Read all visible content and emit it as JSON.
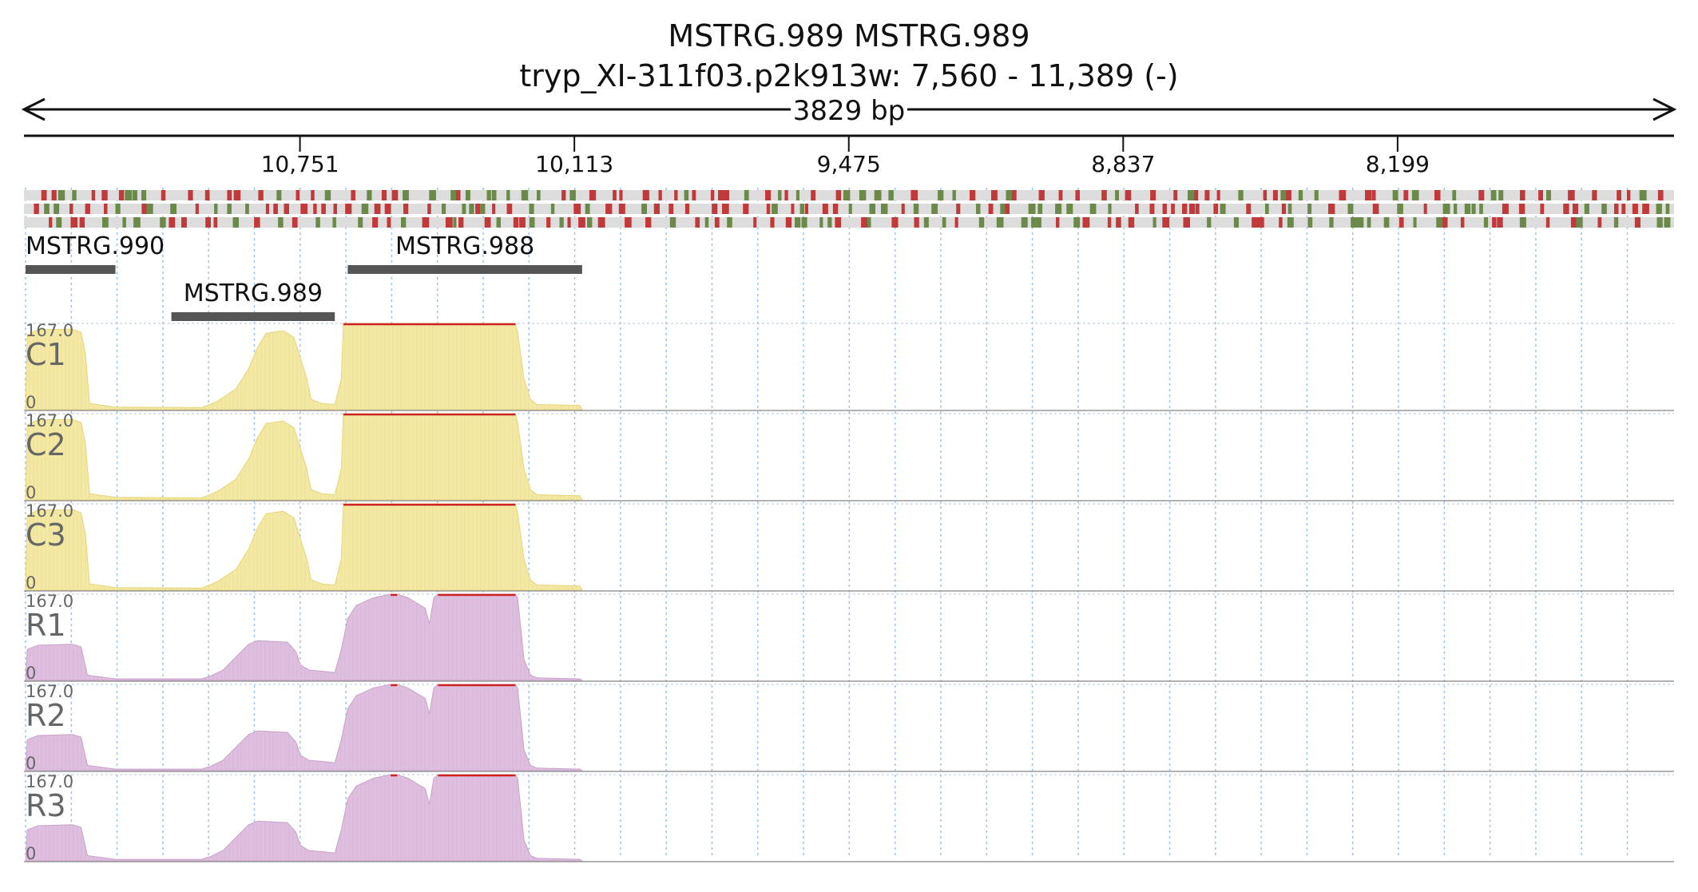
{
  "header": {
    "title": "MSTRG.989  MSTRG.989",
    "locus": "tryp_XI-311f03.p2k913w: 7,560 - 11,389 (-)",
    "span_label": "3829 bp"
  },
  "ruler": {
    "region_start": 7560,
    "region_end": 11389,
    "strand": "-",
    "ticks": [
      {
        "value": 10751,
        "label": "10,751"
      },
      {
        "value": 10113,
        "label": "10,113"
      },
      {
        "value": 9475,
        "label": "9,475"
      },
      {
        "value": 8837,
        "label": "8,837"
      },
      {
        "value": 8199,
        "label": "8,199"
      }
    ]
  },
  "colors": {
    "coverage_control": "#f3e8a4",
    "coverage_control_edge": "#e6d67a",
    "coverage_rnai": "#dfbfdf",
    "coverage_rnai_edge": "#caa2ca",
    "clip_line": "#cc2222",
    "variant_red": "#c0393b",
    "variant_green": "#6b8a4a",
    "variant_track_bg": "#dddddd",
    "gene_bar": "#555555",
    "grid_line": "#9fc3e6"
  },
  "genes": [
    {
      "name": "MSTRG.990",
      "start": 11389,
      "end": 11180
    },
    {
      "name": "MSTRG.989",
      "start": 11050,
      "end": 10670
    },
    {
      "name": "MSTRG.988",
      "start": 10640,
      "end": 10095
    }
  ],
  "tracks": [
    {
      "name": "C1",
      "group": "control",
      "max_label": "167.0",
      "min_label": "0"
    },
    {
      "name": "C2",
      "group": "control",
      "max_label": "167.0",
      "min_label": "0"
    },
    {
      "name": "C3",
      "group": "control",
      "max_label": "167.0",
      "min_label": "0"
    },
    {
      "name": "R1",
      "group": "rnai",
      "max_label": "167.0",
      "min_label": "0"
    },
    {
      "name": "R2",
      "group": "rnai",
      "max_label": "167.0",
      "min_label": "0"
    },
    {
      "name": "R3",
      "group": "rnai",
      "max_label": "167.0",
      "min_label": "0"
    }
  ],
  "coverage_profiles": {
    "control": [
      [
        11389,
        0
      ],
      [
        11385,
        145
      ],
      [
        11360,
        155
      ],
      [
        11280,
        156
      ],
      [
        11260,
        150
      ],
      [
        11250,
        110
      ],
      [
        11240,
        12
      ],
      [
        11180,
        5
      ],
      [
        10980,
        4
      ],
      [
        10960,
        10
      ],
      [
        10940,
        18
      ],
      [
        10900,
        40
      ],
      [
        10870,
        80
      ],
      [
        10850,
        120
      ],
      [
        10830,
        148
      ],
      [
        10790,
        153
      ],
      [
        10765,
        140
      ],
      [
        10750,
        100
      ],
      [
        10735,
        60
      ],
      [
        10725,
        20
      ],
      [
        10700,
        12
      ],
      [
        10670,
        10
      ],
      [
        10655,
        60
      ],
      [
        10650,
        167
      ],
      [
        10640,
        167
      ],
      [
        10250,
        167
      ],
      [
        10245,
        150
      ],
      [
        10230,
        60
      ],
      [
        10215,
        20
      ],
      [
        10200,
        10
      ],
      [
        10100,
        8
      ],
      [
        10095,
        0
      ]
    ],
    "rnai": [
      [
        11389,
        0
      ],
      [
        11385,
        60
      ],
      [
        11360,
        68
      ],
      [
        11280,
        70
      ],
      [
        11260,
        65
      ],
      [
        11245,
        10
      ],
      [
        11180,
        3
      ],
      [
        10980,
        3
      ],
      [
        10960,
        8
      ],
      [
        10930,
        20
      ],
      [
        10900,
        45
      ],
      [
        10870,
        70
      ],
      [
        10850,
        77
      ],
      [
        10780,
        74
      ],
      [
        10760,
        55
      ],
      [
        10750,
        30
      ],
      [
        10730,
        20
      ],
      [
        10700,
        18
      ],
      [
        10670,
        15
      ],
      [
        10655,
        60
      ],
      [
        10640,
        120
      ],
      [
        10620,
        145
      ],
      [
        10580,
        160
      ],
      [
        10540,
        167
      ],
      [
        10525,
        167
      ],
      [
        10500,
        160
      ],
      [
        10460,
        140
      ],
      [
        10450,
        110
      ],
      [
        10440,
        160
      ],
      [
        10430,
        167
      ],
      [
        10250,
        167
      ],
      [
        10245,
        160
      ],
      [
        10230,
        40
      ],
      [
        10215,
        10
      ],
      [
        10200,
        5
      ],
      [
        10100,
        3
      ],
      [
        10095,
        0
      ]
    ]
  },
  "variant_rows": 3
}
